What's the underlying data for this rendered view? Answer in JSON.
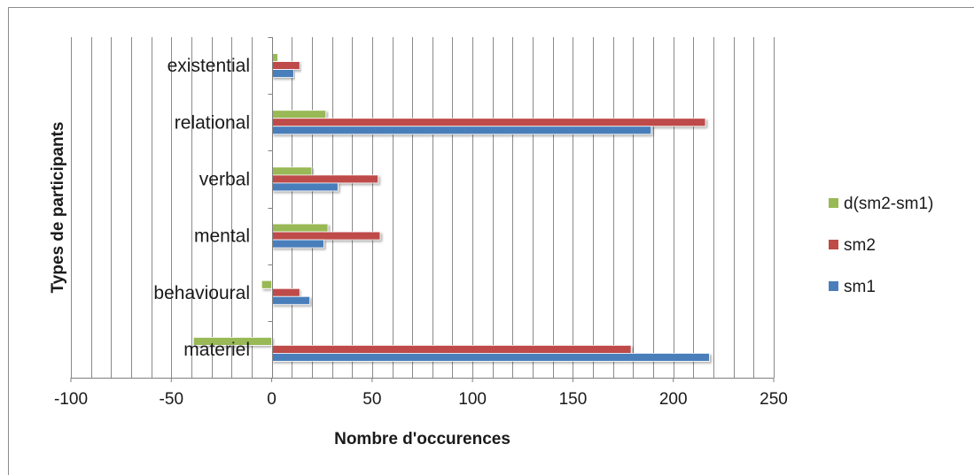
{
  "chart_data": {
    "type": "bar",
    "orientation": "horizontal",
    "xlabel": "Nombre d'occurences",
    "ylabel": "Types de participants",
    "xlim": [
      -100,
      250
    ],
    "major_ticks": [
      -100,
      -50,
      0,
      50,
      100,
      150,
      200,
      250
    ],
    "minor_tick_step": 10,
    "grid": "vertical gridlines every 10",
    "legend_position": "right",
    "categories": [
      "materiel",
      "behavioural",
      "mental",
      "verbal",
      "relational",
      "existential"
    ],
    "series": [
      {
        "name": "sm1",
        "color": "#4a7ebb",
        "values": [
          218,
          19,
          26,
          33,
          189,
          11
        ]
      },
      {
        "name": "sm2",
        "color": "#be4b48",
        "values": [
          179,
          14,
          54,
          53,
          216,
          14
        ]
      },
      {
        "name": "d(sm2-sm1)",
        "color": "#98b954",
        "values": [
          -39,
          -5,
          28,
          20,
          27,
          3
        ]
      }
    ]
  }
}
